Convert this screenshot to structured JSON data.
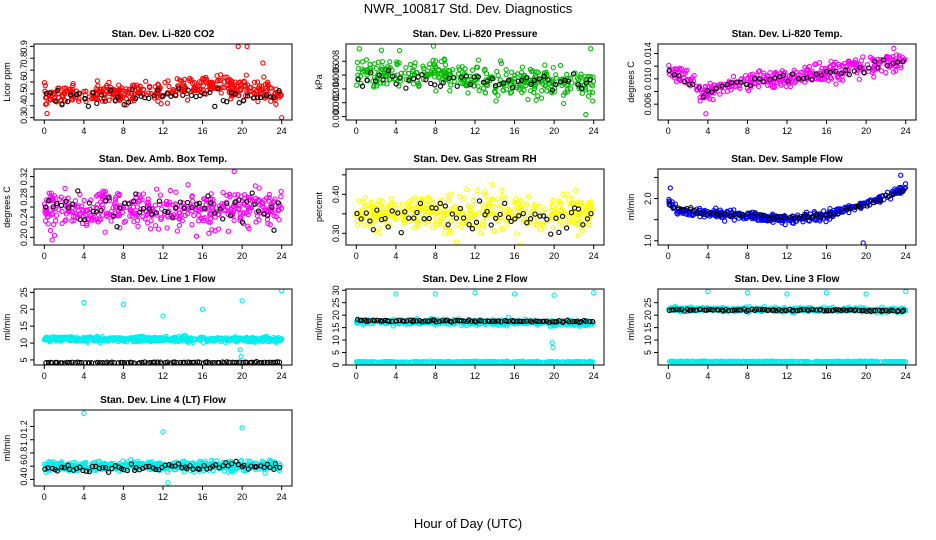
{
  "figure": {
    "title": "NWR_100817  Std. Dev. Diagnostics",
    "xlabel": "Hour of Day (UTC)"
  },
  "chart_data": [
    {
      "type": "scatter",
      "title": "Stan. Dev. Li-820 CO2",
      "ylabel": "Licor ppm",
      "color": "#ff0000",
      "xlim": [
        0,
        24
      ],
      "xticks": [
        0,
        4,
        8,
        12,
        16,
        20,
        24
      ],
      "ylim": [
        0.28,
        0.92
      ],
      "yticks": [
        0.3,
        0.4,
        0.5,
        0.6,
        0.7,
        0.8,
        0.9
      ],
      "yticklabels": [
        "0.3",
        "0.4",
        "0.5",
        "0.6",
        "0.7",
        "0.8",
        "0.9"
      ],
      "series": [
        {
          "name": "all",
          "color": "#ff0000",
          "profile": [
            [
              0,
              0.48
            ],
            [
              6,
              0.5
            ],
            [
              12,
              0.52
            ],
            [
              15,
              0.58
            ],
            [
              18,
              0.57
            ],
            [
              24,
              0.5
            ]
          ],
          "spread": 0.07,
          "n": 380,
          "outliers": [
            [
              19.6,
              0.9
            ],
            [
              20.5,
              0.9
            ],
            [
              22.1,
              0.76
            ],
            [
              24,
              0.3
            ]
          ]
        },
        {
          "name": "hourly",
          "color": "#000000",
          "profile": [
            [
              0,
              0.46
            ],
            [
              6,
              0.47
            ],
            [
              12,
              0.48
            ],
            [
              18,
              0.47
            ],
            [
              24,
              0.46
            ]
          ],
          "spread": 0.05,
          "n": 55,
          "outliers": []
        }
      ]
    },
    {
      "type": "scatter",
      "title": "Stan. Dev. Li-820 Pressure",
      "ylabel": "kPa",
      "color": "#00bb00",
      "xlim": [
        0,
        24
      ],
      "xticks": [
        0,
        4,
        8,
        12,
        16,
        20,
        24
      ],
      "ylim": [
        -0.0005,
        0.0105
      ],
      "yticks": [
        0.0,
        0.002,
        0.004,
        0.006,
        0.008
      ],
      "yticklabels": [
        "0.000",
        "0.002",
        "0.004",
        "0.006",
        "0.008"
      ],
      "series": [
        {
          "name": "all",
          "color": "#00bb00",
          "profile": [
            [
              0,
              0.0065
            ],
            [
              6,
              0.006
            ],
            [
              12,
              0.0055
            ],
            [
              18,
              0.005
            ],
            [
              24,
              0.0045
            ]
          ],
          "spread": 0.0018,
          "n": 380,
          "outliers": [
            [
              0.3,
              0.0098
            ],
            [
              7.8,
              0.0102
            ],
            [
              23.7,
              0.0098
            ],
            [
              23.2,
              0.0003
            ]
          ]
        },
        {
          "name": "hourly",
          "color": "#000000",
          "profile": [
            [
              0,
              0.0055
            ],
            [
              12,
              0.0052
            ],
            [
              24,
              0.005
            ]
          ],
          "spread": 0.0012,
          "n": 55,
          "outliers": []
        }
      ]
    },
    {
      "type": "scatter",
      "title": "Stan. Dev. Li-820 Temp.",
      "ylabel": "degrees C",
      "color": "#ff00ff",
      "xlim": [
        0,
        24
      ],
      "xticks": [
        0,
        4,
        8,
        12,
        16,
        20,
        24
      ],
      "ylim": [
        0.0035,
        0.0155
      ],
      "yticks": [
        0.006,
        0.008,
        0.01,
        0.012,
        0.014
      ],
      "yticklabels": [
        "0.006",
        "",
        "0.010",
        "",
        "0.014"
      ],
      "series": [
        {
          "name": "all",
          "color": "#ff00ff",
          "profile": [
            [
              0,
              0.0115
            ],
            [
              2,
              0.01
            ],
            [
              3.5,
              0.0075
            ],
            [
              5,
              0.0085
            ],
            [
              8,
              0.0095
            ],
            [
              12,
              0.01
            ],
            [
              16,
              0.011
            ],
            [
              20,
              0.012
            ],
            [
              24,
              0.013
            ]
          ],
          "spread": 0.0012,
          "n": 380,
          "outliers": [
            [
              3.8,
              0.0045
            ],
            [
              22.8,
              0.0148
            ]
          ]
        },
        {
          "name": "hourly",
          "color": "#000000",
          "profile": [
            [
              0,
              0.0112
            ],
            [
              3.5,
              0.0078
            ],
            [
              6,
              0.009
            ],
            [
              12,
              0.0102
            ],
            [
              18,
              0.0112
            ],
            [
              24,
              0.0128
            ]
          ],
          "spread": 0.0006,
          "n": 50,
          "outliers": []
        }
      ]
    },
    {
      "type": "scatter",
      "title": "Stan. Dev. Amb. Box Temp.",
      "ylabel": "degrees C",
      "color": "#ff00ff",
      "xlim": [
        0,
        24
      ],
      "xticks": [
        0,
        4,
        8,
        12,
        16,
        20,
        24
      ],
      "ylim": [
        0.185,
        0.335
      ],
      "yticks": [
        0.2,
        0.22,
        0.24,
        0.26,
        0.28,
        0.3,
        0.32
      ],
      "yticklabels": [
        "0.20",
        "",
        "0.24",
        "",
        "0.28",
        "",
        "0.32"
      ],
      "series": [
        {
          "name": "all",
          "color": "#ff00ff",
          "profile": [
            [
              0,
              0.255
            ],
            [
              24,
              0.255
            ]
          ],
          "spread": 0.03,
          "n": 420,
          "outliers": [
            [
              19.2,
              0.33
            ]
          ]
        },
        {
          "name": "hourly",
          "color": "#000000",
          "profile": [
            [
              0,
              0.255
            ],
            [
              24,
              0.255
            ]
          ],
          "spread": 0.028,
          "n": 60,
          "outliers": []
        }
      ]
    },
    {
      "type": "scatter",
      "title": "Stan. Dev. Gas Stream RH",
      "ylabel": "percent",
      "color": "#ffff00",
      "xlim": [
        0,
        24
      ],
      "xticks": [
        0,
        4,
        8,
        12,
        16,
        20,
        24
      ],
      "ylim": [
        0.27,
        0.465
      ],
      "yticks": [
        0.3,
        0.35,
        0.4,
        0.45
      ],
      "yticklabels": [
        "0.30",
        "",
        "0.40",
        ""
      ],
      "series": [
        {
          "name": "all",
          "color": "#ffff00",
          "profile": [
            [
              0,
              0.35
            ],
            [
              24,
              0.35
            ]
          ],
          "spread": 0.04,
          "n": 420,
          "outliers": []
        },
        {
          "name": "hourly",
          "color": "#000000",
          "profile": [
            [
              0,
              0.345
            ],
            [
              24,
              0.345
            ]
          ],
          "spread": 0.03,
          "n": 60,
          "outliers": []
        }
      ]
    },
    {
      "type": "scatter",
      "title": "Stan. Dev. Sample Flow",
      "ylabel": "ml/min",
      "color": "#0000ff",
      "xlim": [
        0,
        24
      ],
      "xticks": [
        0,
        4,
        8,
        12,
        16,
        20,
        24
      ],
      "ylim": [
        0.9,
        2.7
      ],
      "yticks": [
        1.0,
        1.5,
        2.0,
        2.5
      ],
      "yticklabels": [
        "1.0",
        "",
        "2.0",
        ""
      ],
      "series": [
        {
          "name": "all",
          "color": "#0000ff",
          "profile": [
            [
              0,
              2.0
            ],
            [
              1,
              1.7
            ],
            [
              4,
              1.65
            ],
            [
              8,
              1.6
            ],
            [
              12,
              1.5
            ],
            [
              16,
              1.6
            ],
            [
              20,
              1.9
            ],
            [
              24,
              2.25
            ]
          ],
          "spread": 0.08,
          "n": 420,
          "outliers": [
            [
              0.2,
              2.25
            ],
            [
              23.5,
              2.55
            ],
            [
              19.7,
              0.95
            ]
          ]
        },
        {
          "name": "hourly",
          "color": "#000000",
          "profile": [
            [
              0,
              1.85
            ],
            [
              4,
              1.65
            ],
            [
              8,
              1.6
            ],
            [
              12,
              1.55
            ],
            [
              16,
              1.6
            ],
            [
              20,
              1.85
            ],
            [
              24,
              2.2
            ]
          ],
          "spread": 0.05,
          "n": 55,
          "outliers": []
        }
      ]
    },
    {
      "type": "scatter",
      "title": "Stan. Dev. Line 1 Flow",
      "ylabel": "ml/min",
      "color": "#00eeee",
      "xlim": [
        0,
        24
      ],
      "xticks": [
        0,
        4,
        8,
        12,
        16,
        20,
        24
      ],
      "ylim": [
        3.5,
        26
      ],
      "yticks": [
        5,
        10,
        15,
        20,
        25
      ],
      "yticklabels": [
        "5",
        "10",
        "15",
        "20",
        "25"
      ],
      "series": [
        {
          "name": "all",
          "color": "#00eeee",
          "profile": [
            [
              0,
              11.2
            ],
            [
              24,
              11
            ]
          ],
          "spread": 0.6,
          "n": 560,
          "outliers": [
            [
              4,
              22
            ],
            [
              8,
              21.5
            ],
            [
              12,
              18
            ],
            [
              16,
              20
            ],
            [
              20,
              22.5
            ],
            [
              24,
              25.5
            ],
            [
              19.8,
              8
            ],
            [
              19.9,
              6
            ]
          ]
        },
        {
          "name": "hourly",
          "color": "#000000",
          "profile": [
            [
              0,
              4.2
            ],
            [
              24,
              4.3
            ]
          ],
          "spread": 0.15,
          "n": 95,
          "outliers": []
        }
      ]
    },
    {
      "type": "scatter",
      "title": "Stan. Dev. Line 2 Flow",
      "ylabel": "ml/min",
      "color": "#00eeee",
      "xlim": [
        0,
        24
      ],
      "xticks": [
        0,
        4,
        8,
        12,
        16,
        20,
        24
      ],
      "ylim": [
        0,
        30.5
      ],
      "yticks": [
        0,
        5,
        10,
        15,
        20,
        25,
        30
      ],
      "yticklabels": [
        "0",
        "5",
        "10",
        "15",
        "20",
        "25",
        "30"
      ],
      "series": [
        {
          "name": "all",
          "color": "#00eeee",
          "profile": [
            [
              0,
              17.5
            ],
            [
              24,
              16.8
            ]
          ],
          "spread": 0.9,
          "n": 420,
          "outliers": [
            [
              4,
              28.5
            ],
            [
              8,
              28.5
            ],
            [
              12,
              29
            ],
            [
              16,
              28.5
            ],
            [
              20,
              28
            ],
            [
              24,
              29
            ],
            [
              19.8,
              9
            ],
            [
              19.9,
              7
            ]
          ]
        },
        {
          "name": "all-low",
          "color": "#00eeee",
          "profile": [
            [
              0,
              1.2
            ],
            [
              24,
              1.2
            ]
          ],
          "spread": 0.2,
          "n": 420,
          "outliers": []
        },
        {
          "name": "hourly",
          "color": "#000000",
          "profile": [
            [
              0,
              17.8
            ],
            [
              24,
              17.4
            ]
          ],
          "spread": 0.3,
          "n": 95,
          "outliers": []
        }
      ]
    },
    {
      "type": "scatter",
      "title": "Stan. Dev. Line 3 Flow",
      "ylabel": "ml/min",
      "color": "#00eeee",
      "xlim": [
        0,
        24
      ],
      "xticks": [
        0,
        4,
        8,
        12,
        16,
        20,
        24
      ],
      "ylim": [
        0,
        30.5
      ],
      "yticks": [
        5,
        10,
        15,
        20,
        25
      ],
      "yticklabels": [
        "5",
        "10",
        "15",
        "20",
        "25"
      ],
      "series": [
        {
          "name": "all",
          "color": "#00eeee",
          "profile": [
            [
              0,
              22.5
            ],
            [
              24,
              22
            ]
          ],
          "spread": 0.7,
          "n": 420,
          "outliers": [
            [
              4,
              29.5
            ],
            [
              8,
              29
            ],
            [
              12,
              28.5
            ],
            [
              16,
              29
            ],
            [
              20,
              28.5
            ],
            [
              24,
              29.5
            ]
          ]
        },
        {
          "name": "all-low",
          "color": "#00eeee",
          "profile": [
            [
              0,
              1.3
            ],
            [
              24,
              1.3
            ]
          ],
          "spread": 0.2,
          "n": 420,
          "outliers": []
        },
        {
          "name": "hourly",
          "color": "#000000",
          "profile": [
            [
              0,
              22.2
            ],
            [
              24,
              21.8
            ]
          ],
          "spread": 0.3,
          "n": 95,
          "outliers": []
        }
      ]
    },
    {
      "type": "scatter",
      "title": "Stan. Dev. Line 4 (LT) Flow",
      "ylabel": "ml/min",
      "color": "#00eeee",
      "xlim": [
        0,
        24
      ],
      "xticks": [
        0,
        4,
        8,
        12,
        16,
        20,
        24
      ],
      "ylim": [
        0.3,
        1.45
      ],
      "yticks": [
        0.4,
        0.6,
        0.8,
        1.0,
        1.2
      ],
      "yticklabels": [
        "0.4",
        "0.6",
        "0.8",
        "1.0",
        "1.2"
      ],
      "series": [
        {
          "name": "all",
          "color": "#00eeee",
          "profile": [
            [
              0,
              0.6
            ],
            [
              24,
              0.6
            ]
          ],
          "spread": 0.06,
          "n": 520,
          "outliers": [
            [
              4,
              1.4
            ],
            [
              12,
              1.12
            ],
            [
              20,
              1.18
            ],
            [
              12.5,
              0.35
            ]
          ]
        },
        {
          "name": "hourly",
          "color": "#000000",
          "profile": [
            [
              0,
              0.57
            ],
            [
              24,
              0.6
            ]
          ],
          "spread": 0.05,
          "n": 75,
          "outliers": []
        }
      ]
    }
  ]
}
